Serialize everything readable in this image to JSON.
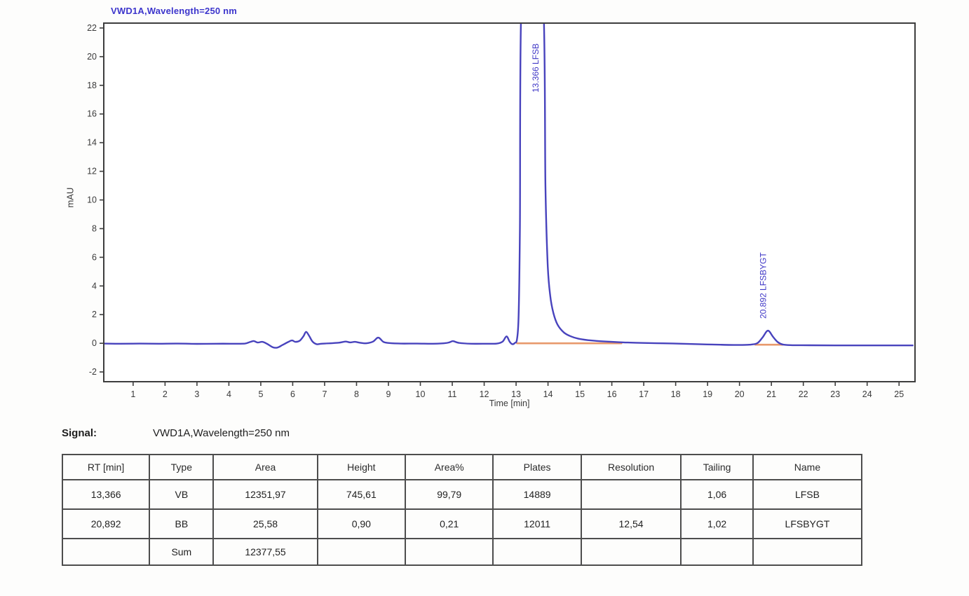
{
  "chart_data": {
    "type": "line",
    "title": "VWD1A,Wavelength=250 nm",
    "xlabel": "Time [min]",
    "ylabel": "mAU",
    "xlim": [
      0.08,
      25.5
    ],
    "ylim": [
      -2.68,
      22.34
    ],
    "xticks": [
      1,
      2,
      3,
      4,
      5,
      6,
      7,
      8,
      9,
      10,
      11,
      12,
      13,
      14,
      15,
      16,
      17,
      18,
      19,
      20,
      21,
      22,
      23,
      24,
      25
    ],
    "yticks": [
      -2,
      0,
      2,
      4,
      6,
      8,
      10,
      12,
      14,
      16,
      18,
      20,
      22
    ],
    "grid": false,
    "legend": "none",
    "colors": {
      "trace": "#4843bd",
      "integration": "#e8996c",
      "frame": "#3d3d3d",
      "tick_text": "#3a3a3a",
      "annotation": "#3f37c6"
    },
    "trace": [
      [
        0.08,
        -0.02
      ],
      [
        0.6,
        -0.03
      ],
      [
        1.2,
        -0.02
      ],
      [
        1.8,
        -0.03
      ],
      [
        2.4,
        -0.02
      ],
      [
        3.0,
        -0.04
      ],
      [
        3.6,
        -0.03
      ],
      [
        4.2,
        -0.03
      ],
      [
        4.5,
        -0.02
      ],
      [
        4.65,
        0.08
      ],
      [
        4.78,
        0.16
      ],
      [
        4.9,
        0.05
      ],
      [
        5.05,
        0.1
      ],
      [
        5.2,
        -0.04
      ],
      [
        5.38,
        -0.28
      ],
      [
        5.52,
        -0.3
      ],
      [
        5.68,
        -0.12
      ],
      [
        5.85,
        0.08
      ],
      [
        5.98,
        0.2
      ],
      [
        6.08,
        0.1
      ],
      [
        6.22,
        0.18
      ],
      [
        6.34,
        0.5
      ],
      [
        6.42,
        0.8
      ],
      [
        6.52,
        0.5
      ],
      [
        6.62,
        0.12
      ],
      [
        6.75,
        -0.06
      ],
      [
        6.9,
        -0.03
      ],
      [
        7.15,
        0.0
      ],
      [
        7.45,
        0.04
      ],
      [
        7.65,
        0.12
      ],
      [
        7.8,
        0.06
      ],
      [
        7.95,
        0.1
      ],
      [
        8.1,
        0.04
      ],
      [
        8.3,
        0.0
      ],
      [
        8.52,
        0.12
      ],
      [
        8.68,
        0.4
      ],
      [
        8.84,
        0.1
      ],
      [
        9.0,
        0.02
      ],
      [
        9.4,
        -0.02
      ],
      [
        9.9,
        -0.02
      ],
      [
        10.4,
        -0.03
      ],
      [
        10.85,
        0.03
      ],
      [
        11.02,
        0.15
      ],
      [
        11.2,
        0.03
      ],
      [
        11.6,
        -0.03
      ],
      [
        12.1,
        -0.03
      ],
      [
        12.4,
        -0.02
      ],
      [
        12.58,
        0.12
      ],
      [
        12.7,
        0.48
      ],
      [
        12.8,
        0.1
      ],
      [
        12.88,
        -0.06
      ],
      [
        12.96,
        0.02
      ],
      [
        13.03,
        0.3
      ],
      [
        13.08,
        2.0
      ],
      [
        13.12,
        8.0
      ],
      [
        13.17,
        24.0
      ],
      [
        13.5,
        30.0
      ],
      [
        13.85,
        24.0
      ],
      [
        13.92,
        11.0
      ],
      [
        13.99,
        5.5
      ],
      [
        14.07,
        3.3
      ],
      [
        14.17,
        2.1
      ],
      [
        14.3,
        1.3
      ],
      [
        14.5,
        0.75
      ],
      [
        14.72,
        0.48
      ],
      [
        14.95,
        0.32
      ],
      [
        15.25,
        0.22
      ],
      [
        15.6,
        0.15
      ],
      [
        16.0,
        0.1
      ],
      [
        16.5,
        0.05
      ],
      [
        17.0,
        0.02
      ],
      [
        17.6,
        0.0
      ],
      [
        18.2,
        -0.03
      ],
      [
        18.8,
        -0.07
      ],
      [
        19.4,
        -0.1
      ],
      [
        19.9,
        -0.12
      ],
      [
        20.3,
        -0.1
      ],
      [
        20.55,
        0.0
      ],
      [
        20.72,
        0.4
      ],
      [
        20.89,
        0.88
      ],
      [
        21.05,
        0.45
      ],
      [
        21.2,
        0.08
      ],
      [
        21.35,
        -0.08
      ],
      [
        21.6,
        -0.13
      ],
      [
        22.2,
        -0.14
      ],
      [
        23.0,
        -0.15
      ],
      [
        24.0,
        -0.15
      ],
      [
        25.0,
        -0.15
      ],
      [
        25.45,
        -0.15
      ]
    ],
    "integration_segments": [
      {
        "x1": 13.03,
        "x2": 16.3,
        "y": 0.0
      },
      {
        "x1": 20.5,
        "x2": 21.35,
        "y": -0.1
      }
    ],
    "annotations": [
      {
        "x": 13.7,
        "y": 17.5,
        "label": "13.366 LFSB"
      },
      {
        "x": 20.83,
        "y": 1.72,
        "label": "20.892 LFSBYGT"
      }
    ],
    "peaks": [
      {
        "rt_min": 13.366,
        "type": "VB",
        "area": 12351.97,
        "height": 745.61,
        "area_pct": 99.79,
        "plates": 14889,
        "resolution": null,
        "tailing": 1.06,
        "name": "LFSB"
      },
      {
        "rt_min": 20.892,
        "type": "BB",
        "area": 25.58,
        "height": 0.9,
        "area_pct": 0.21,
        "plates": 12011,
        "resolution": 12.54,
        "tailing": 1.02,
        "name": "LFSBYGT"
      }
    ],
    "area_sum": 12377.55
  },
  "chart": {
    "title": "VWD1A,Wavelength=250 nm",
    "ylabel": "mAU",
    "xlabel": "Time [min]"
  },
  "signal": {
    "label": "Signal:",
    "value": "VWD1A,Wavelength=250 nm"
  },
  "table": {
    "headers": [
      "RT [min]",
      "Type",
      "Area",
      "Height",
      "Area%",
      "Plates",
      "Resolution",
      "Tailing",
      "Name"
    ],
    "col_widths_pct": [
      10.9,
      8.0,
      13.0,
      11.0,
      11.0,
      11.0,
      12.5,
      9.0,
      13.6
    ],
    "rows": [
      [
        "13,366",
        "VB",
        "12351,97",
        "745,61",
        "99,79",
        "14889",
        "",
        "1,06",
        "LFSB"
      ],
      [
        "20,892",
        "BB",
        "25,58",
        "0,90",
        "0,21",
        "12011",
        "12,54",
        "1,02",
        "LFSBYGT"
      ],
      [
        "",
        "Sum",
        "12377,55",
        "",
        "",
        "",
        "",
        "",
        ""
      ]
    ]
  }
}
